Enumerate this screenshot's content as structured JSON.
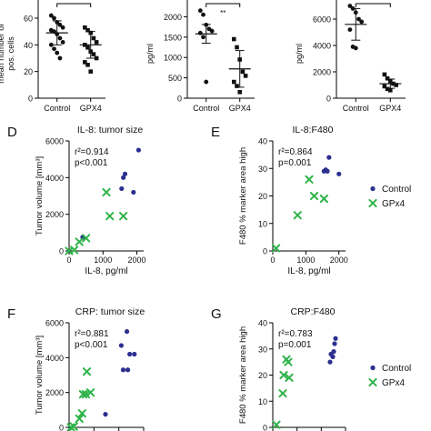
{
  "colors": {
    "control": "#2b2f8f",
    "gpx4": "#2fb34a",
    "axis": "#000000"
  },
  "chart_data": [
    {
      "id": "top1",
      "type": "scatter",
      "ylabel": "mean number of pos. cells",
      "categories": [
        "Control",
        "GPX4"
      ],
      "yticks": [
        0,
        20,
        40,
        60
      ],
      "ylim": [
        0,
        75
      ],
      "series": [
        {
          "name": "Control",
          "values": [
            62,
            60,
            57,
            55,
            53,
            51,
            50,
            48,
            45,
            42,
            40,
            37,
            34,
            30
          ],
          "mean": 49,
          "sd": 9
        },
        {
          "name": "GPX4",
          "values": [
            53,
            51,
            49,
            45,
            42,
            40,
            38,
            35,
            33,
            30,
            27,
            25,
            20
          ],
          "mean": 40,
          "sd": 10
        }
      ]
    },
    {
      "id": "top2",
      "type": "scatter",
      "ylabel": "pg/ml",
      "categories": [
        "Control",
        "GPX4"
      ],
      "yticks": [
        0,
        500,
        1000,
        1500,
        2000
      ],
      "ylim": [
        0,
        2500
      ],
      "significance": "**",
      "series": [
        {
          "name": "Control",
          "values": [
            2150,
            2050,
            1800,
            1700,
            1650,
            1600,
            1500,
            400
          ],
          "mean": 1580,
          "sd": 230
        },
        {
          "name": "GPX4",
          "values": [
            1450,
            1250,
            950,
            650,
            550,
            400,
            300,
            150
          ],
          "mean": 720,
          "sd": 450
        }
      ]
    },
    {
      "id": "top3",
      "type": "scatter",
      "ylabel": "pg/ml",
      "categories": [
        "Control",
        "GPX4"
      ],
      "yticks": [
        0,
        2000,
        4000,
        6000
      ],
      "ylim": [
        0,
        8000
      ],
      "series": [
        {
          "name": "Control",
          "values": [
            7000,
            6800,
            6500,
            6000,
            5800,
            5200,
            3900,
            3800
          ],
          "mean": 5600,
          "sd": 1200
        },
        {
          "name": "GPX4",
          "values": [
            1800,
            1500,
            1300,
            1100,
            1000,
            900,
            700,
            600
          ],
          "mean": 1100,
          "sd": 350
        }
      ]
    },
    {
      "id": "D",
      "type": "scatter",
      "panel_letter": "D",
      "title": "IL-8: tumor size",
      "xlabel": "IL-8, pg/ml",
      "ylabel": "Tumor volume [mm³]",
      "xlim": [
        0,
        2200
      ],
      "ylim": [
        0,
        6000
      ],
      "xticks": [
        0,
        1000,
        2000
      ],
      "yticks": [
        0,
        2000,
        4000,
        6000
      ],
      "stats": {
        "r2_label": "r²=0.914",
        "p_label": "p<0.001"
      },
      "series": [
        {
          "name": "Control",
          "points": [
            [
              400,
              750
            ],
            [
              1550,
              3400
            ],
            [
              1600,
              4000
            ],
            [
              1650,
              4200
            ],
            [
              1900,
              3200
            ],
            [
              2050,
              5500
            ]
          ]
        },
        {
          "name": "GPx4",
          "points": [
            [
              0,
              0
            ],
            [
              150,
              50
            ],
            [
              300,
              500
            ],
            [
              500,
              700
            ],
            [
              1100,
              3200
            ],
            [
              1200,
              1900
            ],
            [
              1600,
              1900
            ]
          ]
        }
      ]
    },
    {
      "id": "E",
      "type": "scatter",
      "panel_letter": "E",
      "title": "IL-8:F480",
      "xlabel": "IL-8, pg/ml",
      "ylabel": "F480 % marker area high",
      "xlim": [
        0,
        2200
      ],
      "ylim": [
        0,
        40
      ],
      "xticks": [
        0,
        1000,
        2000
      ],
      "yticks": [
        0,
        10,
        20,
        30,
        40
      ],
      "stats": {
        "r2_label": "r²=0.864",
        "p_label": "p=0.001"
      },
      "legend": {
        "position": "right",
        "entries": [
          "Control",
          "GPx4"
        ]
      },
      "series": [
        {
          "name": "Control",
          "points": [
            [
              1550,
              29
            ],
            [
              1600,
              29.5
            ],
            [
              1650,
              29
            ],
            [
              1700,
              34
            ],
            [
              2000,
              28
            ]
          ]
        },
        {
          "name": "GPx4",
          "points": [
            [
              100,
              1
            ],
            [
              750,
              13
            ],
            [
              1100,
              26
            ],
            [
              1250,
              20
            ],
            [
              1550,
              19
            ]
          ]
        }
      ]
    },
    {
      "id": "F",
      "type": "scatter",
      "panel_letter": "F",
      "title": "CRP: tumor size",
      "ylabel": "Tumor volume [mm³]",
      "xlim": [
        0,
        8000
      ],
      "ylim": [
        0,
        6000
      ],
      "yticks": [
        0,
        2000,
        4000,
        6000
      ],
      "stats": {
        "r2_label": "r²=0.881",
        "p_label": "p<0.001"
      },
      "series": [
        {
          "name": "Control",
          "points": [
            [
              3900,
              750
            ],
            [
              5600,
              4700
            ],
            [
              5800,
              3300
            ],
            [
              6200,
              5500
            ],
            [
              6300,
              3300
            ],
            [
              6500,
              4200
            ],
            [
              7000,
              4200
            ]
          ]
        },
        {
          "name": "GPx4",
          "points": [
            [
              200,
              0
            ],
            [
              500,
              50
            ],
            [
              1100,
              500
            ],
            [
              1400,
              800
            ],
            [
              1500,
              1900
            ],
            [
              1800,
              1900
            ],
            [
              1900,
              3200
            ],
            [
              2300,
              2000
            ]
          ]
        }
      ]
    },
    {
      "id": "G",
      "type": "scatter",
      "panel_letter": "G",
      "title": "CRP:F480",
      "ylabel": "F480 % marker area high",
      "xlim": [
        0,
        8000
      ],
      "ylim": [
        0,
        40
      ],
      "yticks": [
        0,
        10,
        20,
        30,
        40
      ],
      "stats": {
        "r2_label": "r²=0.783",
        "p_label": "p=0.001"
      },
      "legend": {
        "position": "right",
        "entries": [
          "Control",
          "GPx4"
        ]
      },
      "series": [
        {
          "name": "Control",
          "points": [
            [
              6300,
              25
            ],
            [
              6400,
              28
            ],
            [
              6600,
              27
            ],
            [
              6700,
              29
            ],
            [
              6800,
              32
            ],
            [
              6900,
              34
            ]
          ]
        },
        {
          "name": "GPx4",
          "points": [
            [
              400,
              1
            ],
            [
              1100,
              13
            ],
            [
              1200,
              20
            ],
            [
              1500,
              26
            ],
            [
              1700,
              25
            ],
            [
              1800,
              19
            ]
          ]
        }
      ]
    }
  ]
}
